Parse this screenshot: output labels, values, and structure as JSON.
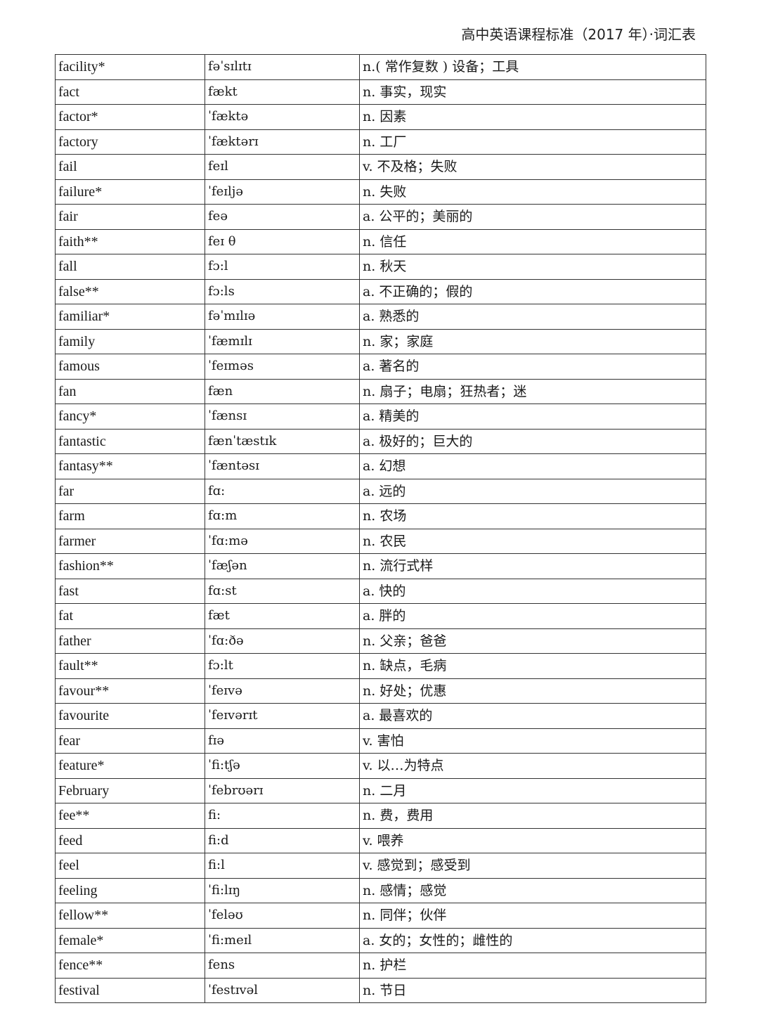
{
  "header": {
    "title": "高中英语课程标准（2017 年）·词汇表"
  },
  "rows": [
    {
      "word": "facility*",
      "ipa": "fəˈsɪlɪtɪ",
      "def": "n.( 常作复数 ) 设备；工具"
    },
    {
      "word": "fact",
      "ipa": "fækt",
      "def": "n. 事实，现实"
    },
    {
      "word": "factor*",
      "ipa": "ˈfæktə",
      "def": "n. 因素"
    },
    {
      "word": "factory",
      "ipa": "ˈfæktərɪ",
      "def": "n. 工厂"
    },
    {
      "word": "fail",
      "ipa": "feɪl",
      "def": "v. 不及格；失败"
    },
    {
      "word": "failure*",
      "ipa": "ˈfeɪljə",
      "def": "n. 失败"
    },
    {
      "word": "fair",
      "ipa": "feə",
      "def": "a. 公平的；美丽的"
    },
    {
      "word": "faith**",
      "ipa": "feɪ θ",
      "def": "n. 信任"
    },
    {
      "word": "fall",
      "ipa": "fɔ:l",
      "def": "n. 秋天"
    },
    {
      "word": "false**",
      "ipa": "fɔ:ls",
      "def": "a. 不正确的；假的"
    },
    {
      "word": "familiar*",
      "ipa": "fəˈmɪlɪə",
      "def": "a. 熟悉的"
    },
    {
      "word": "family",
      "ipa": "ˈfæmɪlɪ",
      "def": "n. 家；家庭"
    },
    {
      "word": "famous",
      "ipa": "ˈfeɪməs",
      "def": "a. 著名的"
    },
    {
      "word": "fan",
      "ipa": "fæn",
      "def": "n. 扇子；电扇；狂热者；迷"
    },
    {
      "word": "fancy*",
      "ipa": "ˈfænsɪ",
      "def": "a. 精美的"
    },
    {
      "word": "fantastic",
      "ipa": "fænˈtæstɪk",
      "def": "a. 极好的；巨大的"
    },
    {
      "word": "fantasy**",
      "ipa": "ˈfæntəsɪ",
      "def": "a. 幻想"
    },
    {
      "word": "far",
      "ipa": "fɑ:",
      "def": "a. 远的"
    },
    {
      "word": "farm",
      "ipa": "fɑ:m",
      "def": "n. 农场"
    },
    {
      "word": "farmer",
      "ipa": "ˈfɑ:mə",
      "def": "n. 农民"
    },
    {
      "word": "fashion**",
      "ipa": "ˈfæʃən",
      "def": "n. 流行式样"
    },
    {
      "word": "fast",
      "ipa": "fɑ:st",
      "def": "a. 快的"
    },
    {
      "word": "fat",
      "ipa": "fæt",
      "def": "a. 胖的"
    },
    {
      "word": "father",
      "ipa": "ˈfɑ:ðə",
      "def": "n. 父亲；爸爸"
    },
    {
      "word": "fault**",
      "ipa": "fɔ:lt",
      "def": "n. 缺点，毛病"
    },
    {
      "word": "favour**",
      "ipa": "ˈfeɪvə",
      "def": "n. 好处；优惠"
    },
    {
      "word": "favourite",
      "ipa": "ˈfeɪvərɪt",
      "def": "a. 最喜欢的"
    },
    {
      "word": "fear",
      "ipa": "fɪə",
      "def": "v. 害怕"
    },
    {
      "word": "feature*",
      "ipa": "ˈfi:tʃə",
      "def": "v. 以…为特点"
    },
    {
      "word": "February",
      "ipa": "ˈfebrʊərɪ",
      "def": "n. 二月"
    },
    {
      "word": "fee**",
      "ipa": "fi:",
      "def": "n. 费，费用"
    },
    {
      "word": "feed",
      "ipa": "fi:d",
      "def": "v. 喂养"
    },
    {
      "word": "feel",
      "ipa": "fi:l",
      "def": "v. 感觉到；感受到"
    },
    {
      "word": "feeling",
      "ipa": "ˈfi:lɪŋ",
      "def": "n. 感情；感觉"
    },
    {
      "word": "fellow**",
      "ipa": "ˈfeləʊ",
      "def": "n. 同伴；伙伴"
    },
    {
      "word": "female*",
      "ipa": "ˈfi:meɪl",
      "def": "a. 女的；女性的；雌性的"
    },
    {
      "word": "fence**",
      "ipa": "fens",
      "def": "n. 护栏"
    },
    {
      "word": "festival",
      "ipa": "ˈfestɪvəl",
      "def": "n. 节日"
    }
  ]
}
